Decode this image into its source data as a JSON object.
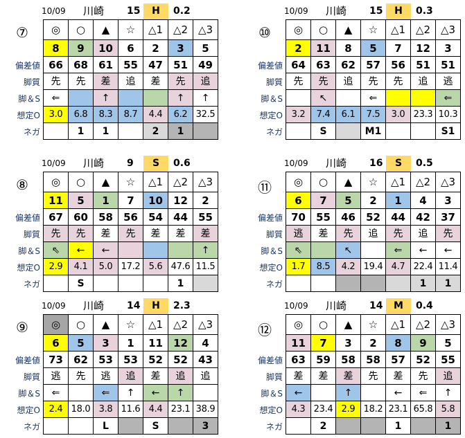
{
  "row_labels": [
    "偏差値",
    "脚質",
    "脚＆S",
    "想定O",
    "ネガ"
  ],
  "symbols": [
    "◎",
    "○",
    "▲",
    "☆",
    "△1",
    "△2",
    "△3"
  ],
  "blocks": [
    {
      "race": "⑦",
      "date": "10/09",
      "venue": "川崎",
      "count": "15",
      "grade": "H",
      "value": "0.2",
      "symbol_bg": [
        "",
        "",
        "",
        "",
        "",
        "",
        ""
      ],
      "horses": [
        "8",
        "9",
        "10",
        "6",
        "2",
        "3",
        "5"
      ],
      "horses_bg": [
        "y",
        "g",
        "p",
        "",
        "",
        "b",
        ""
      ],
      "hensa": [
        "66",
        "68",
        "61",
        "55",
        "47",
        "51",
        "49"
      ],
      "kyaku": [
        "先",
        "先",
        "差",
        "追",
        "差",
        "先",
        "追"
      ],
      "kyaku_bg": [
        "",
        "",
        "p",
        "",
        "",
        "p",
        "p"
      ],
      "ashi": [
        "⇐",
        "",
        "↑",
        "",
        "",
        "↑",
        "↑"
      ],
      "ashi_bg": [
        "",
        "b",
        "p",
        "b",
        "g",
        "p",
        ""
      ],
      "odds": [
        "3.0",
        "6.8",
        "8.3",
        "8.7",
        "4.4",
        "6.2",
        "32.5"
      ],
      "odds_bg": [
        "y",
        "b",
        "b",
        "b",
        "p",
        "b",
        ""
      ],
      "nega": [
        "",
        "1",
        "1",
        "",
        "2",
        "1",
        ""
      ],
      "nega_bg": [
        "",
        "",
        "",
        "",
        "l",
        "d",
        "d"
      ]
    },
    {
      "race": "⑩",
      "date": "10/09",
      "venue": "川崎",
      "count": "15",
      "grade": "H",
      "value": "0.3",
      "symbol_bg": [
        "",
        "",
        "",
        "",
        "",
        "",
        ""
      ],
      "horses": [
        "2",
        "11",
        "8",
        "5",
        "7",
        "12",
        "3"
      ],
      "horses_bg": [
        "y",
        "p",
        "",
        "b",
        "",
        "",
        ""
      ],
      "hensa": [
        "64",
        "63",
        "62",
        "57",
        "56",
        "51",
        "51"
      ],
      "kyaku": [
        "先",
        "先",
        "追",
        "先",
        "先",
        "追",
        "逃"
      ],
      "kyaku_bg": [
        "",
        "p",
        "",
        "",
        "",
        "",
        ""
      ],
      "ashi": [
        "",
        "↖",
        "",
        "⇐",
        "",
        "",
        "⇐"
      ],
      "ashi_bg": [
        "",
        "p",
        "",
        "",
        "y",
        "y",
        "g"
      ],
      "odds": [
        "3.2",
        "7.4",
        "6.1",
        "7.5",
        "3.0",
        "23.3",
        "10.3"
      ],
      "odds_bg": [
        "p",
        "b",
        "b",
        "b",
        "p",
        "",
        ""
      ],
      "nega": [
        "",
        "S",
        "",
        "M1",
        "",
        "",
        "S1"
      ],
      "nega_bg": [
        "",
        "",
        "l",
        "",
        "",
        "",
        ""
      ]
    },
    {
      "race": "⑧",
      "date": "10/09",
      "venue": "川崎",
      "count": "9",
      "grade": "S",
      "value": "0.6",
      "symbol_bg": [
        "",
        "",
        "",
        "",
        "",
        "",
        ""
      ],
      "horses": [
        "11",
        "5",
        "1",
        "7",
        "10",
        "12",
        "2"
      ],
      "horses_bg": [
        "y",
        "p",
        "g",
        "",
        "b",
        "",
        ""
      ],
      "hensa": [
        "67",
        "60",
        "58",
        "56",
        "54",
        "44",
        "55"
      ],
      "kyaku": [
        "先",
        "先",
        "差",
        "先",
        "差",
        "差",
        "差"
      ],
      "kyaku_bg": [
        "p",
        "p",
        "",
        "p",
        "",
        "",
        "p"
      ],
      "ashi": [
        "⇖",
        "←",
        "←",
        "",
        "",
        "",
        "↑"
      ],
      "ashi_bg": [
        "g",
        "y",
        "p",
        "p",
        "b",
        "g",
        "g"
      ],
      "odds": [
        "2.9",
        "4.1",
        "5.0",
        "17.2",
        "5.6",
        "47.6",
        "11.5"
      ],
      "odds_bg": [
        "y",
        "p",
        "p",
        "",
        "p",
        "",
        ""
      ],
      "nega": [
        "",
        "S",
        "",
        "",
        "",
        "1",
        ""
      ],
      "nega_bg": [
        "",
        "",
        "",
        "",
        "",
        "",
        "l"
      ]
    },
    {
      "race": "⑪",
      "date": "10/09",
      "venue": "川崎",
      "count": "16",
      "grade": "S",
      "value": "0.5",
      "symbol_bg": [
        "",
        "",
        "",
        "",
        "",
        "",
        ""
      ],
      "horses": [
        "6",
        "7",
        "5",
        "2",
        "1",
        "4",
        "3"
      ],
      "horses_bg": [
        "y",
        "p",
        "g",
        "",
        "b",
        "",
        ""
      ],
      "hensa": [
        "70",
        "55",
        "46",
        "52",
        "44",
        "42",
        "37"
      ],
      "kyaku": [
        "逃",
        "差",
        "先",
        "追",
        "先",
        "追",
        "先"
      ],
      "kyaku_bg": [
        "p",
        "",
        "p",
        "",
        "p",
        "",
        "p"
      ],
      "ashi": [
        "⇖",
        "",
        "↖",
        "",
        "⇐",
        "←",
        "←"
      ],
      "ashi_bg": [
        "g",
        "g",
        "b",
        "",
        "g",
        "",
        ""
      ],
      "odds": [
        "1.7",
        "8.5",
        "4.2",
        "19.4",
        "4.7",
        "22.4",
        "11.4"
      ],
      "odds_bg": [
        "y",
        "b",
        "p",
        "",
        "p",
        "",
        ""
      ],
      "nega": [
        "",
        "",
        "",
        "",
        "",
        "1",
        "1"
      ],
      "nega_bg": [
        "",
        "",
        "d",
        "d",
        "l",
        "l",
        "l"
      ]
    },
    {
      "race": "⑨",
      "date": "10/09",
      "venue": "川崎",
      "count": "14",
      "grade": "H",
      "value": "2.3",
      "symbol_bg": [
        "k",
        "",
        "",
        "",
        "",
        "",
        ""
      ],
      "horses": [
        "6",
        "5",
        "3",
        "1",
        "11",
        "12",
        "4"
      ],
      "horses_bg": [
        "y",
        "b",
        "p",
        "",
        "",
        "g",
        ""
      ],
      "hensa": [
        "73",
        "62",
        "53",
        "53",
        "52",
        "52",
        "43"
      ],
      "kyaku": [
        "逃",
        "先",
        "逃",
        "追",
        "差",
        "追",
        "追"
      ],
      "kyaku_bg": [
        "",
        "",
        "",
        "p",
        "",
        "p",
        ""
      ],
      "ashi": [
        "⇐",
        "",
        "⇐",
        "↑",
        "←",
        "↑",
        ""
      ],
      "ashi_bg": [
        "",
        "",
        "b",
        "",
        "g",
        "g",
        ""
      ],
      "odds": [
        "2.4",
        "18.0",
        "3.8",
        "11.6",
        "4.4",
        "23.1",
        "38.9"
      ],
      "odds_bg": [
        "y",
        "",
        "p",
        "",
        "p",
        "",
        ""
      ],
      "nega": [
        "",
        "",
        "L",
        "",
        "S",
        "",
        "3"
      ],
      "nega_bg": [
        "",
        "",
        "",
        "d",
        "",
        "d",
        "d"
      ]
    },
    {
      "race": "⑫",
      "date": "10/09",
      "venue": "川崎",
      "count": "14",
      "grade": "M",
      "value": "0.4",
      "symbol_bg": [
        "",
        "",
        "",
        "",
        "",
        "",
        ""
      ],
      "horses": [
        "11",
        "7",
        "3",
        "2",
        "8",
        "9",
        "5"
      ],
      "horses_bg": [
        "p",
        "y",
        "",
        "",
        "b",
        "g",
        ""
      ],
      "hensa": [
        "63",
        "59",
        "58",
        "58",
        "57",
        "52",
        "55"
      ],
      "kyaku": [
        "差",
        "差",
        "差",
        "先",
        "差",
        "先",
        "追"
      ],
      "kyaku_bg": [
        "",
        "",
        "p",
        "",
        "",
        "",
        "p"
      ],
      "ashi": [
        "←",
        "",
        "↑",
        "",
        "←",
        "⇐",
        "↑"
      ],
      "ashi_bg": [
        "b",
        "",
        "b",
        "",
        "",
        "",
        ""
      ],
      "odds": [
        "4.3",
        "23.4",
        "2.9",
        "18.2",
        "23.1",
        "65.8",
        "5.8"
      ],
      "odds_bg": [
        "p",
        "",
        "y",
        "",
        "",
        "",
        "p"
      ],
      "nega": [
        "",
        "2",
        "",
        "",
        "1",
        "",
        "1"
      ],
      "nega_bg": [
        "",
        "",
        "d",
        "d",
        "",
        "d",
        "d"
      ]
    }
  ]
}
